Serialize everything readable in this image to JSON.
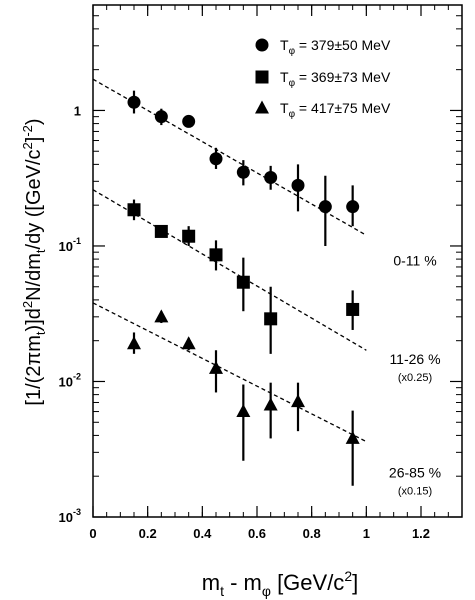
{
  "chart_data": {
    "type": "scatter",
    "x_axis": {
      "label_main": "m",
      "label_sub1": "t",
      "label_mid": " - m",
      "label_sub2": "φ",
      "label_unit": " [GeV/c",
      "label_sup": "2",
      "label_end": "]",
      "range": [
        0,
        1.35
      ],
      "ticks": [
        {
          "v": 0,
          "label": "0"
        },
        {
          "v": 0.2,
          "label": "0.2"
        },
        {
          "v": 0.4,
          "label": "0.4"
        },
        {
          "v": 0.6,
          "label": "0.6"
        },
        {
          "v": 0.8,
          "label": "0.8"
        },
        {
          "v": 1.0,
          "label": "1"
        },
        {
          "v": 1.2,
          "label": "1.2"
        }
      ],
      "minor_step": 0.05
    },
    "y_axis": {
      "label_text": "[1/(2πm",
      "label_sub1": "t",
      "label_mid": ")]d",
      "label_sup1": "2",
      "label_mid2": "N/dm",
      "label_sub2": "t",
      "label_mid3": "/dy  ([GeV/c",
      "label_sup2": "2",
      "label_mid4": "]",
      "label_sup3": "-2",
      "label_end": ")",
      "scale": "log",
      "range": [
        0.001,
        6
      ],
      "ticks": [
        {
          "v": 1,
          "base": "1",
          "exp": ""
        },
        {
          "v": 0.1,
          "base": "10",
          "exp": "-1"
        },
        {
          "v": 0.01,
          "base": "10",
          "exp": "-2"
        },
        {
          "v": 0.001,
          "base": "10",
          "exp": "-3"
        }
      ]
    },
    "legend": {
      "placement": "top-right",
      "entries": [
        {
          "marker": "circle",
          "prefix": "T",
          "sub": "φ",
          "value": " = 379±50 MeV"
        },
        {
          "marker": "square",
          "prefix": "T",
          "sub": "φ",
          "value": " = 369±73 MeV"
        },
        {
          "marker": "triangle",
          "prefix": "T",
          "sub": "φ",
          "value": " = 417±75 MeV"
        }
      ]
    },
    "series": [
      {
        "marker": "circle",
        "label": "0-11 %",
        "scale_note": "",
        "points": [
          {
            "x": 0.15,
            "y": 1.15,
            "lo": 0.95,
            "hi": 1.4
          },
          {
            "x": 0.25,
            "y": 0.9,
            "lo": 0.78,
            "hi": 1.03
          },
          {
            "x": 0.35,
            "y": 0.83,
            "lo": 0.76,
            "hi": 0.9
          },
          {
            "x": 0.45,
            "y": 0.44,
            "lo": 0.37,
            "hi": 0.53
          },
          {
            "x": 0.55,
            "y": 0.35,
            "lo": 0.28,
            "hi": 0.43
          },
          {
            "x": 0.65,
            "y": 0.32,
            "lo": 0.26,
            "hi": 0.39
          },
          {
            "x": 0.75,
            "y": 0.28,
            "lo": 0.18,
            "hi": 0.4
          },
          {
            "x": 0.85,
            "y": 0.195,
            "lo": 0.1,
            "hi": 0.33
          },
          {
            "x": 0.95,
            "y": 0.195,
            "lo": 0.14,
            "hi": 0.28
          }
        ],
        "fit": {
          "x": [
            0.0,
            1.0
          ],
          "y": [
            1.7,
            0.12
          ]
        }
      },
      {
        "marker": "square",
        "label": "11-26 %",
        "scale_note": "(x0.25)",
        "points": [
          {
            "x": 0.15,
            "y": 0.185,
            "lo": 0.155,
            "hi": 0.22
          },
          {
            "x": 0.25,
            "y": 0.128,
            "lo": 0.12,
            "hi": 0.136
          },
          {
            "x": 0.35,
            "y": 0.118,
            "lo": 0.1,
            "hi": 0.14
          },
          {
            "x": 0.45,
            "y": 0.086,
            "lo": 0.066,
            "hi": 0.11
          },
          {
            "x": 0.55,
            "y": 0.054,
            "lo": 0.033,
            "hi": 0.082
          },
          {
            "x": 0.65,
            "y": 0.029,
            "lo": 0.016,
            "hi": 0.05
          },
          {
            "x": 0.95,
            "y": 0.034,
            "lo": 0.024,
            "hi": 0.047
          }
        ],
        "fit": {
          "x": [
            0.0,
            1.0
          ],
          "y": [
            0.26,
            0.017
          ]
        }
      },
      {
        "marker": "triangle",
        "label": "26-85 %",
        "scale_note": "(x0.15)",
        "points": [
          {
            "x": 0.15,
            "y": 0.019,
            "lo": 0.016,
            "hi": 0.023
          },
          {
            "x": 0.25,
            "y": 0.03,
            "lo": 0.027,
            "hi": 0.033
          },
          {
            "x": 0.35,
            "y": 0.019,
            "lo": 0.017,
            "hi": 0.021
          },
          {
            "x": 0.45,
            "y": 0.0125,
            "lo": 0.0083,
            "hi": 0.017
          },
          {
            "x": 0.55,
            "y": 0.006,
            "lo": 0.0026,
            "hi": 0.0095
          },
          {
            "x": 0.65,
            "y": 0.0067,
            "lo": 0.0038,
            "hi": 0.0098
          },
          {
            "x": 0.75,
            "y": 0.0071,
            "lo": 0.0043,
            "hi": 0.0098
          },
          {
            "x": 0.95,
            "y": 0.0038,
            "lo": 0.0017,
            "hi": 0.0061
          }
        ],
        "fit": {
          "x": [
            0.0,
            1.0
          ],
          "y": [
            0.038,
            0.0036
          ]
        }
      }
    ]
  }
}
